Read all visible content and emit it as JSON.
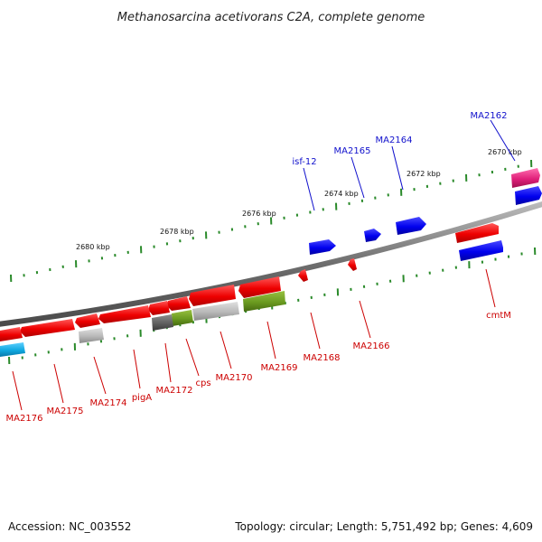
{
  "title": "Methanosarcina acetivorans C2A, complete genome",
  "footer": {
    "accession": "Accession: NC_003552",
    "summary": "Topology: circular; Length: 5,751,492 bp; Genes: 4,609"
  },
  "ruler": {
    "labels": [
      "2680 kbp",
      "2678 kbp",
      "2676 kbp",
      "2674 kbp",
      "2672 kbp",
      "2670 kbp"
    ]
  },
  "colors": {
    "backbone": "#7a7a7a",
    "tick": "#2a8a2a",
    "label_top": "#1010cc",
    "label_bottom": "#cc0000",
    "gene_red": "#ff1010",
    "gene_blue": "#1010ee",
    "gene_pink": "#ee2277",
    "gene_cyan": "#1aaee0",
    "gene_gray": "#b8b8b8",
    "gene_darkgray": "#666666",
    "gene_olive": "#6a9a20"
  },
  "gene_labels": {
    "top": [
      "MA2162",
      "MA2164",
      "MA2165",
      "isf-12"
    ],
    "bottom": [
      "cmtM",
      "MA2166",
      "MA2168",
      "MA2169",
      "MA2170",
      "cps",
      "MA2172",
      "pigA",
      "MA2174",
      "MA2175",
      "MA2176"
    ]
  }
}
